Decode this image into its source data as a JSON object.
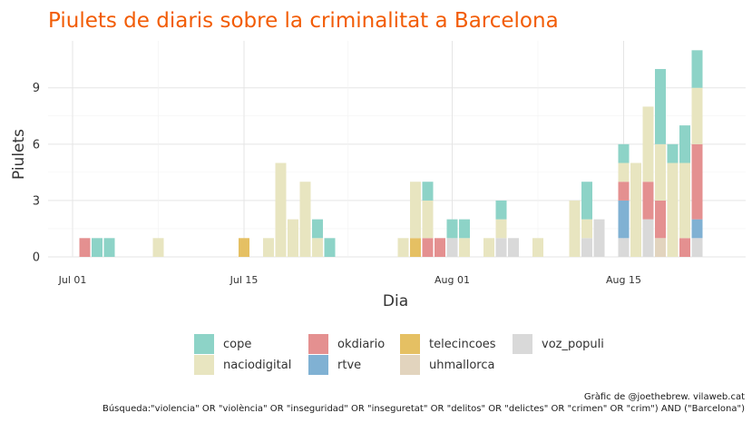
{
  "chart_data": {
    "type": "bar",
    "stacked": true,
    "title": "Piulets de diaris sobre la criminalitat a Barcelona",
    "xlabel": "Dia",
    "ylabel": "Piulets",
    "ylim": [
      0,
      11.5
    ],
    "yticks": [
      0,
      3,
      6,
      9
    ],
    "xticks": [
      {
        "label": "Jul 01",
        "date": "2017-07-01"
      },
      {
        "label": "Jul 15",
        "date": "2017-07-15"
      },
      {
        "label": "Aug 01",
        "date": "2017-08-01"
      },
      {
        "label": "Aug 15",
        "date": "2017-08-15"
      }
    ],
    "grid": true,
    "legend_position": "bottom",
    "stack_order": [
      "voz_populi",
      "uhmallorca",
      "telecincoes",
      "rtve",
      "okdiario",
      "naciodigital",
      "cope"
    ],
    "series": [
      {
        "name": "cope",
        "color": "#8DD3C7",
        "data": [
          [
            "2017-07-03",
            1
          ],
          [
            "2017-07-04",
            1
          ],
          [
            "2017-07-21",
            1
          ],
          [
            "2017-07-22",
            1
          ],
          [
            "2017-07-30",
            1
          ],
          [
            "2017-08-01",
            1
          ],
          [
            "2017-08-02",
            1
          ],
          [
            "2017-08-05",
            1
          ],
          [
            "2017-08-12",
            2
          ],
          [
            "2017-08-15",
            1
          ],
          [
            "2017-08-18",
            4
          ],
          [
            "2017-08-19",
            1
          ],
          [
            "2017-08-20",
            2
          ],
          [
            "2017-08-21",
            2
          ]
        ]
      },
      {
        "name": "naciodigital",
        "color": "#E8E5C0",
        "data": [
          [
            "2017-07-08",
            1
          ],
          [
            "2017-07-17",
            1
          ],
          [
            "2017-07-18",
            5
          ],
          [
            "2017-07-19",
            2
          ],
          [
            "2017-07-20",
            4
          ],
          [
            "2017-07-21",
            1
          ],
          [
            "2017-07-28",
            1
          ],
          [
            "2017-07-29",
            3
          ],
          [
            "2017-07-30",
            2
          ],
          [
            "2017-08-02",
            1
          ],
          [
            "2017-08-04",
            1
          ],
          [
            "2017-08-05",
            1
          ],
          [
            "2017-08-08",
            1
          ],
          [
            "2017-08-11",
            3
          ],
          [
            "2017-08-12",
            1
          ],
          [
            "2017-08-15",
            1
          ],
          [
            "2017-08-16",
            5
          ],
          [
            "2017-08-17",
            4
          ],
          [
            "2017-08-18",
            3
          ],
          [
            "2017-08-19",
            5
          ],
          [
            "2017-08-20",
            4
          ],
          [
            "2017-08-21",
            3
          ]
        ]
      },
      {
        "name": "okdiario",
        "color": "#E49090",
        "data": [
          [
            "2017-07-02",
            1
          ],
          [
            "2017-07-30",
            1
          ],
          [
            "2017-07-31",
            1
          ],
          [
            "2017-08-15",
            1
          ],
          [
            "2017-08-17",
            2
          ],
          [
            "2017-08-18",
            2
          ],
          [
            "2017-08-20",
            1
          ],
          [
            "2017-08-21",
            4
          ]
        ]
      },
      {
        "name": "rtve",
        "color": "#80B1D3",
        "data": [
          [
            "2017-08-15",
            2
          ],
          [
            "2017-08-21",
            1
          ]
        ]
      },
      {
        "name": "telecincoes",
        "color": "#E5C063",
        "data": [
          [
            "2017-07-15",
            1
          ],
          [
            "2017-07-29",
            1
          ]
        ]
      },
      {
        "name": "uhmallorca",
        "color": "#E2D4BE",
        "data": [
          [
            "2017-08-18",
            1
          ]
        ]
      },
      {
        "name": "voz_populi",
        "color": "#D9D9D9",
        "data": [
          [
            "2017-08-01",
            1
          ],
          [
            "2017-08-05",
            1
          ],
          [
            "2017-08-06",
            1
          ],
          [
            "2017-08-12",
            1
          ],
          [
            "2017-08-13",
            2
          ],
          [
            "2017-08-15",
            1
          ],
          [
            "2017-08-17",
            2
          ],
          [
            "2017-08-21",
            1
          ]
        ]
      }
    ]
  },
  "legend": {
    "items": [
      {
        "label": "cope",
        "color": "#8DD3C7"
      },
      {
        "label": "naciodigital",
        "color": "#E8E5C0"
      },
      {
        "label": "okdiario",
        "color": "#E49090"
      },
      {
        "label": "rtve",
        "color": "#80B1D3"
      },
      {
        "label": "telecincoes",
        "color": "#E5C063"
      },
      {
        "label": "uhmallorca",
        "color": "#E2D4BE"
      },
      {
        "label": "voz_populi",
        "color": "#D9D9D9"
      }
    ]
  },
  "caption": {
    "line1": "Gràfic de @joethebrew. vilaweb.cat",
    "line2": "Búsqueda:\"violencia\" OR \"violència\" OR \"inseguridad\" OR \"inseguretat\" OR \"delitos\" OR \"delictes\" OR \"crimen\" OR \"crim\") AND (\"Barcelona\")"
  },
  "colors": {
    "title": "#F25C05",
    "grid": "#E5E5E5",
    "axis_text": "#333333"
  }
}
